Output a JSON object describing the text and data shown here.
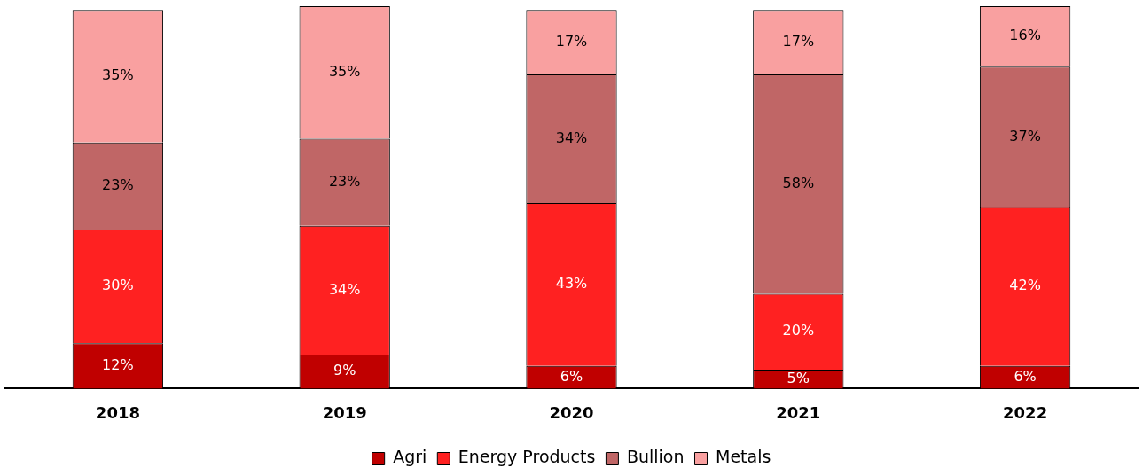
{
  "chart_data": {
    "type": "bar",
    "stacked": true,
    "categories": [
      "2018",
      "2019",
      "2020",
      "2021",
      "2022"
    ],
    "series": [
      {
        "name": "Agri",
        "color": "#c00000",
        "values": [
          12,
          9,
          6,
          5,
          6
        ],
        "value_labels": [
          "12%",
          "9%",
          "6%",
          "5%",
          "6%"
        ]
      },
      {
        "name": "Energy Products",
        "color": "#ff2121",
        "values": [
          30,
          34,
          43,
          20,
          42
        ],
        "value_labels": [
          "30%",
          "34%",
          "43%",
          "20%",
          "42%"
        ]
      },
      {
        "name": "Bullion",
        "color": "#c06666",
        "values": [
          23,
          23,
          34,
          58,
          37
        ],
        "value_labels": [
          "23%",
          "23%",
          "34%",
          "58%",
          "37%"
        ]
      },
      {
        "name": "Metals",
        "color": "#f9a0a0",
        "values": [
          35,
          35,
          17,
          17,
          16
        ],
        "value_labels": [
          "35%",
          "35%",
          "17%",
          "17%",
          "16%"
        ]
      }
    ],
    "legend": "bottom",
    "grid": false
  }
}
